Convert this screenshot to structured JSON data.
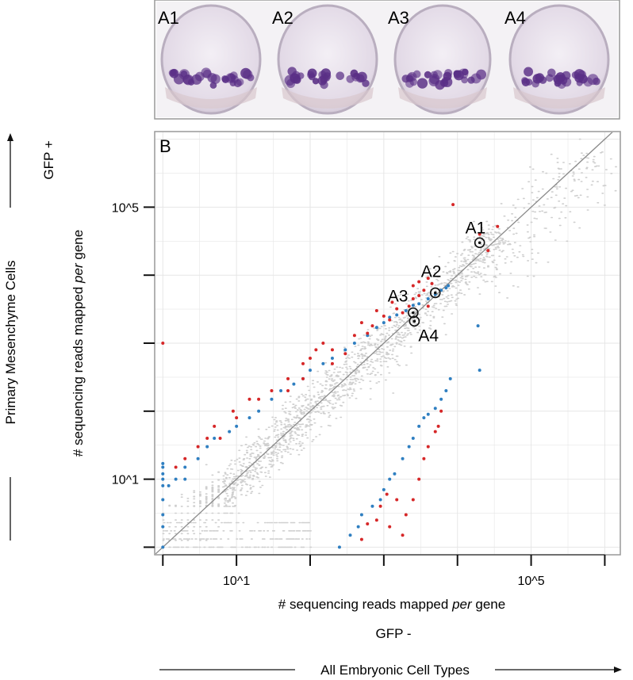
{
  "panels": [
    {
      "label": "A1"
    },
    {
      "label": "A2"
    },
    {
      "label": "A3"
    },
    {
      "label": "A4"
    }
  ],
  "panel_b_label": "B",
  "left_side_label": "Primary Mesenchyme Cells",
  "bottom_side_label": "All Embryonic Cell Types",
  "colors": {
    "background_points": "#cfcfcf",
    "red_points": "#d62728",
    "blue_points": "#2f7fc1",
    "identity_line": "#8a8a8a",
    "grid": "#e6e6e6",
    "frame": "#999999",
    "stain": "#5a2f86",
    "embryo": "#ece6ef"
  },
  "chart_data": {
    "type": "scatter",
    "scale": "log10",
    "xlabel": "# sequencing reads mapped per gene",
    "xlabel_italic_word": "per",
    "xlabel_sub": "GFP -",
    "ylabel": "# sequencing reads mapped per gene",
    "ylabel_italic_word": "per",
    "ylabel_sub": "GFP +",
    "xlim_log10": [
      -0.1,
      6.2
    ],
    "ylim_log10": [
      -0.1,
      6.1
    ],
    "x_ticks_log10": [
      0,
      1,
      2,
      3,
      4,
      5,
      6
    ],
    "y_ticks_log10": [
      0,
      1,
      2,
      3,
      4,
      5
    ],
    "x_tick_labels": [
      {
        "log10": 1,
        "text": "10^1"
      },
      {
        "log10": 5,
        "text": "10^5"
      }
    ],
    "y_tick_labels": [
      {
        "log10": 1,
        "text": "10^1"
      },
      {
        "log10": 5,
        "text": "10^5"
      }
    ],
    "identity_line": true,
    "grid": true,
    "annotated_genes": [
      {
        "label": "A1",
        "x": 20000,
        "y": 30000
      },
      {
        "label": "A2",
        "x": 5000,
        "y": 5500
      },
      {
        "label": "A3",
        "x": 2500,
        "y": 2800
      },
      {
        "label": "A4",
        "x": 2600,
        "y": 2100
      }
    ],
    "series": [
      {
        "color_key": "red_points",
        "points": [
          [
            8700,
            109000
          ],
          [
            2500,
            7000
          ],
          [
            3000,
            8000
          ],
          [
            1300,
            4000
          ],
          [
            1000,
            2500
          ],
          [
            20000,
            40000
          ],
          [
            35000,
            52000
          ],
          [
            26000,
            23000
          ],
          [
            3000,
            5000
          ],
          [
            4000,
            3500
          ],
          [
            800,
            3000
          ],
          [
            400,
            1300
          ],
          [
            500,
            2000
          ],
          [
            150,
            1000
          ],
          [
            200,
            800
          ],
          [
            100,
            600
          ],
          [
            80,
            500
          ],
          [
            50,
            300
          ],
          [
            30,
            200
          ],
          [
            15,
            150
          ],
          [
            9,
            100
          ],
          [
            5,
            60
          ],
          [
            4,
            40
          ],
          [
            2,
            20
          ],
          [
            1.5,
            15
          ],
          [
            1,
            1000
          ],
          [
            120,
            800
          ],
          [
            600,
            1400
          ],
          [
            700,
            1800
          ],
          [
            1500,
            3200
          ],
          [
            1800,
            2800
          ],
          [
            2200,
            3500
          ],
          [
            3500,
            6000
          ],
          [
            4500,
            7500
          ],
          [
            4000,
            9000
          ],
          [
            50,
            200
          ],
          [
            80,
            300
          ],
          [
            10,
            80
          ],
          [
            6,
            40
          ],
          [
            3,
            30
          ],
          [
            20,
            150
          ],
          [
            200,
            500
          ],
          [
            300,
            700
          ],
          [
            1200,
            2200
          ],
          [
            2500,
            4500
          ],
          [
            800,
            2.5
          ],
          [
            1200,
            2.0
          ],
          [
            1800,
            1.5
          ],
          [
            2000,
            3.0
          ],
          [
            900,
            4.0
          ],
          [
            1500,
            5.0
          ],
          [
            1100,
            6.0
          ],
          [
            2500,
            5.0
          ],
          [
            600,
            2.2
          ],
          [
            500,
            1.3
          ],
          [
            3000,
            10
          ],
          [
            3500,
            20
          ],
          [
            4000,
            30
          ],
          [
            5000,
            50
          ],
          [
            6000,
            100
          ],
          [
            5500,
            60
          ]
        ]
      },
      {
        "color_key": "blue_points",
        "points": [
          [
            1,
            1
          ],
          [
            1,
            2
          ],
          [
            1,
            3
          ],
          [
            1,
            5
          ],
          [
            1,
            8
          ],
          [
            1,
            10
          ],
          [
            1,
            12
          ],
          [
            1,
            15
          ],
          [
            1,
            17
          ],
          [
            1.2,
            8
          ],
          [
            1.5,
            10
          ],
          [
            2,
            10
          ],
          [
            2,
            15
          ],
          [
            3,
            20
          ],
          [
            4,
            30
          ],
          [
            5,
            40
          ],
          [
            8,
            50
          ],
          [
            10,
            60
          ],
          [
            15,
            80
          ],
          [
            20,
            100
          ],
          [
            30,
            150
          ],
          [
            40,
            200
          ],
          [
            60,
            250
          ],
          [
            80,
            300
          ],
          [
            100,
            400
          ],
          [
            150,
            500
          ],
          [
            200,
            600
          ],
          [
            300,
            800
          ],
          [
            400,
            1000
          ],
          [
            600,
            1300
          ],
          [
            800,
            1700
          ],
          [
            1000,
            2000
          ],
          [
            1200,
            2400
          ],
          [
            1500,
            2600
          ],
          [
            2000,
            3000
          ],
          [
            2500,
            3600
          ],
          [
            3000,
            3800
          ],
          [
            4000,
            4500
          ],
          [
            5000,
            5200
          ],
          [
            6000,
            6000
          ],
          [
            7000,
            6500
          ],
          [
            7500,
            7000
          ],
          [
            250,
            1
          ],
          [
            350,
            1.5
          ],
          [
            450,
            2
          ],
          [
            500,
            3
          ],
          [
            700,
            4
          ],
          [
            900,
            5
          ],
          [
            1000,
            7
          ],
          [
            1200,
            10
          ],
          [
            1400,
            12
          ],
          [
            1800,
            20
          ],
          [
            2200,
            30
          ],
          [
            2500,
            40
          ],
          [
            3000,
            60
          ],
          [
            3500,
            80
          ],
          [
            4000,
            90
          ],
          [
            5000,
            110
          ],
          [
            6000,
            150
          ],
          [
            20000,
            400
          ],
          [
            19000,
            1800
          ],
          [
            8000,
            300
          ],
          [
            7000,
            200
          ]
        ]
      }
    ],
    "background_cloud": {
      "color_key": "background_points",
      "relation": "y approximately equals x",
      "count_drawn": 9000
    }
  }
}
